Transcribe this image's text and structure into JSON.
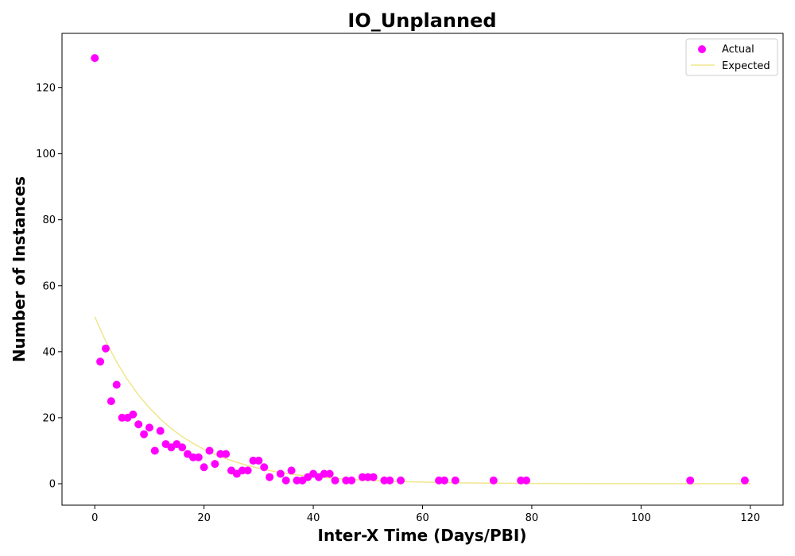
{
  "chart_data": {
    "type": "scatter",
    "title": "IO_Unplanned",
    "xlabel": "Inter-X Time (Days/PBI)",
    "ylabel": "Number of Instances",
    "xlim": [
      -6,
      126
    ],
    "ylim": [
      -6.5,
      136.5
    ],
    "xticks": [
      0,
      20,
      40,
      60,
      80,
      100,
      120
    ],
    "yticks": [
      0,
      20,
      40,
      60,
      80,
      100,
      120
    ],
    "grid": false,
    "legend_position": "top-right",
    "series": [
      {
        "name": "Actual",
        "kind": "scatter",
        "color": "#ff00ff",
        "points": [
          [
            0,
            129
          ],
          [
            1,
            37
          ],
          [
            2,
            41
          ],
          [
            3,
            25
          ],
          [
            4,
            30
          ],
          [
            5,
            20
          ],
          [
            6,
            20
          ],
          [
            7,
            21
          ],
          [
            8,
            18
          ],
          [
            9,
            15
          ],
          [
            10,
            17
          ],
          [
            11,
            10
          ],
          [
            12,
            16
          ],
          [
            13,
            12
          ],
          [
            14,
            11
          ],
          [
            15,
            12
          ],
          [
            16,
            11
          ],
          [
            17,
            9
          ],
          [
            18,
            8
          ],
          [
            19,
            8
          ],
          [
            20,
            5
          ],
          [
            21,
            10
          ],
          [
            22,
            6
          ],
          [
            23,
            9
          ],
          [
            24,
            9
          ],
          [
            25,
            4
          ],
          [
            26,
            3
          ],
          [
            27,
            4
          ],
          [
            28,
            4
          ],
          [
            29,
            7
          ],
          [
            30,
            7
          ],
          [
            31,
            5
          ],
          [
            32,
            2
          ],
          [
            34,
            3
          ],
          [
            35,
            1
          ],
          [
            36,
            4
          ],
          [
            37,
            1
          ],
          [
            38,
            1
          ],
          [
            39,
            2
          ],
          [
            40,
            3
          ],
          [
            41,
            2
          ],
          [
            42,
            3
          ],
          [
            43,
            3
          ],
          [
            44,
            1
          ],
          [
            46,
            1
          ],
          [
            47,
            1
          ],
          [
            49,
            2
          ],
          [
            50,
            2
          ],
          [
            51,
            2
          ],
          [
            53,
            1
          ],
          [
            54,
            1
          ],
          [
            56,
            1
          ],
          [
            63,
            1
          ],
          [
            64,
            1
          ],
          [
            66,
            1
          ],
          [
            73,
            1
          ],
          [
            78,
            1
          ],
          [
            79,
            1
          ],
          [
            109,
            1
          ],
          [
            119,
            1
          ]
        ]
      },
      {
        "name": "Expected",
        "kind": "line",
        "color": "#f0e68c",
        "x": [
          0,
          2,
          4,
          6,
          8,
          10,
          12,
          14,
          16,
          18,
          20,
          22,
          24,
          26,
          28,
          30,
          32,
          34,
          36,
          38,
          40,
          45,
          50,
          55,
          60,
          65,
          70,
          80,
          90,
          100,
          110,
          120
        ],
        "y": [
          50.6,
          43.2,
          36.9,
          31.5,
          26.9,
          23.0,
          19.6,
          16.7,
          14.3,
          12.2,
          10.4,
          8.9,
          7.6,
          6.5,
          5.5,
          4.7,
          4.0,
          3.4,
          2.9,
          2.5,
          2.1,
          1.5,
          1.0,
          0.7,
          0.5,
          0.3,
          0.2,
          0.1,
          0.05,
          0.02,
          0.01,
          0.01
        ]
      }
    ]
  }
}
